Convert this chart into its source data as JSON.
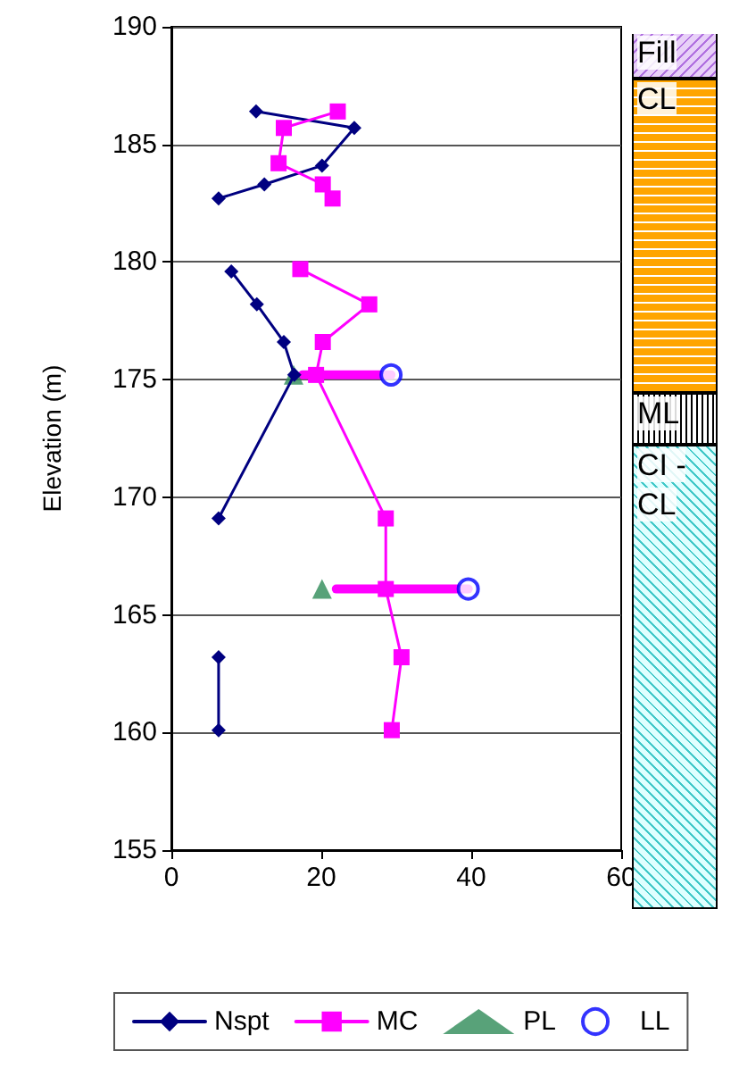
{
  "chart_data": {
    "type": "line",
    "ylabel": "Elevation (m)",
    "xlim": [
      0,
      60
    ],
    "xticks": [
      0,
      20,
      40,
      60
    ],
    "ylim": [
      155,
      190
    ],
    "yticks": [
      155,
      160,
      165,
      170,
      175,
      180,
      185,
      190
    ],
    "grid": "y",
    "legend": "bottom",
    "series": [
      {
        "name": "Nspt",
        "color": "#000080",
        "marker": "diamond",
        "x": [
          11.3,
          24.4,
          20.1,
          12.4,
          6.3,
          null,
          8.0,
          11.4,
          15.0,
          16.4,
          6.3,
          null,
          6.3,
          6.3
        ],
        "values": [
          186.4,
          185.7,
          184.1,
          183.3,
          182.7,
          null,
          179.6,
          178.2,
          176.6,
          175.2,
          169.1,
          null,
          163.2,
          160.1
        ]
      },
      {
        "name": "MC",
        "color": "#ff00ff",
        "marker": "square",
        "x": [
          22.2,
          15.0,
          14.3,
          20.2,
          21.5,
          null,
          17.2,
          26.4,
          20.2,
          19.3,
          28.6,
          28.6,
          30.7,
          29.4
        ],
        "values": [
          186.4,
          185.7,
          184.2,
          183.3,
          182.7,
          null,
          179.7,
          178.2,
          176.6,
          175.2,
          169.1,
          166.1,
          163.2,
          160.1
        ],
        "xerrors": [
          null,
          null,
          null,
          null,
          null,
          null,
          null,
          null,
          null,
          [
            17.5,
            29.3
          ],
          null,
          [
            22,
            39.6
          ],
          null,
          null
        ]
      },
      {
        "name": "PL",
        "type": "scatter",
        "color": "#2e8b57",
        "marker": "triangle",
        "x": [
          16.3,
          20.1
        ],
        "values": [
          175.2,
          166.1
        ]
      },
      {
        "name": "LL",
        "type": "scatter",
        "color": "#0000ff",
        "marker": "circle",
        "x": [
          29.3,
          39.6
        ],
        "values": [
          175.2,
          166.1
        ]
      }
    ],
    "annotations": [
      "Fill",
      "CL",
      "ML",
      "CI -\nCL"
    ]
  }
}
